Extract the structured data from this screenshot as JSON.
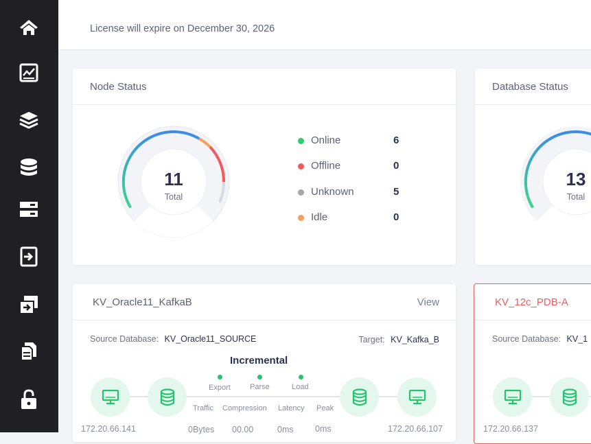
{
  "sidebar": {
    "items": [
      {
        "icon": "home-icon"
      },
      {
        "icon": "chart-icon"
      },
      {
        "icon": "layers-icon"
      },
      {
        "icon": "database-icon"
      },
      {
        "icon": "server-icon"
      },
      {
        "icon": "import-icon"
      },
      {
        "icon": "sync-icon"
      },
      {
        "icon": "documents-icon"
      },
      {
        "icon": "lock-icon"
      }
    ]
  },
  "header": {
    "license_text": "License will expire on December 30, 2026"
  },
  "node_status": {
    "title": "Node Status",
    "total": "11",
    "total_label": "Total",
    "legend": [
      {
        "label": "Online",
        "value": "6",
        "color": "#2ecc71"
      },
      {
        "label": "Offline",
        "value": "0",
        "color": "#f25b5b"
      },
      {
        "label": "Unknown",
        "value": "5",
        "color": "#a6a6a6"
      },
      {
        "label": "Idle",
        "value": "0",
        "color": "#f5a05a"
      }
    ]
  },
  "database_status": {
    "title": "Database Status",
    "total": "13",
    "total_label": "Total"
  },
  "task_card_1": {
    "name": "KV_Oracle11_KafkaB",
    "view_label": "View",
    "source_label": "Source Database:",
    "source_value": "KV_Oracle11_SOURCE",
    "target_label": "Target:",
    "target_value": "KV_Kafka_B",
    "mode": "Incremental",
    "stages": [
      "Export",
      "Parse",
      "Load"
    ],
    "metrics": [
      "Traffic",
      "Compression",
      "Latency",
      "Peak"
    ],
    "metric_values": [
      "0Bytes",
      "00.00",
      "0ms",
      "0ms"
    ],
    "source_ip": "172.20.66.141",
    "target_ip": "172.20.66.107"
  },
  "task_card_2": {
    "name": "KV_12c_PDB-A",
    "source_label": "Source Database:",
    "source_value": "KV_1",
    "source_ip": "172.20.66.137",
    "accent_color": "#f25b5b"
  }
}
